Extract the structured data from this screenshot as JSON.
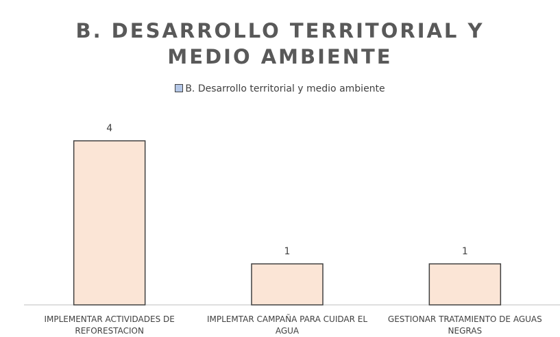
{
  "chart_data": {
    "type": "bar",
    "title": "B. DESARROLLO TERRITORIAL Y MEDIO AMBIENTE",
    "legend": "B. Desarrollo territorial y medio ambiente",
    "categories": [
      "IMPLEMENTAR ACTIVIDADES DE REFORESTACION",
      "IMPLEMTAR CAMPAÑA PARA CUIDAR EL AGUA",
      "GESTIONAR TRATAMIENTO DE AGUAS NEGRAS"
    ],
    "values": [
      4,
      1,
      1
    ],
    "color": "#fbe5d6",
    "edge_color": "#404040",
    "legend_color": "#b4c7e7"
  }
}
